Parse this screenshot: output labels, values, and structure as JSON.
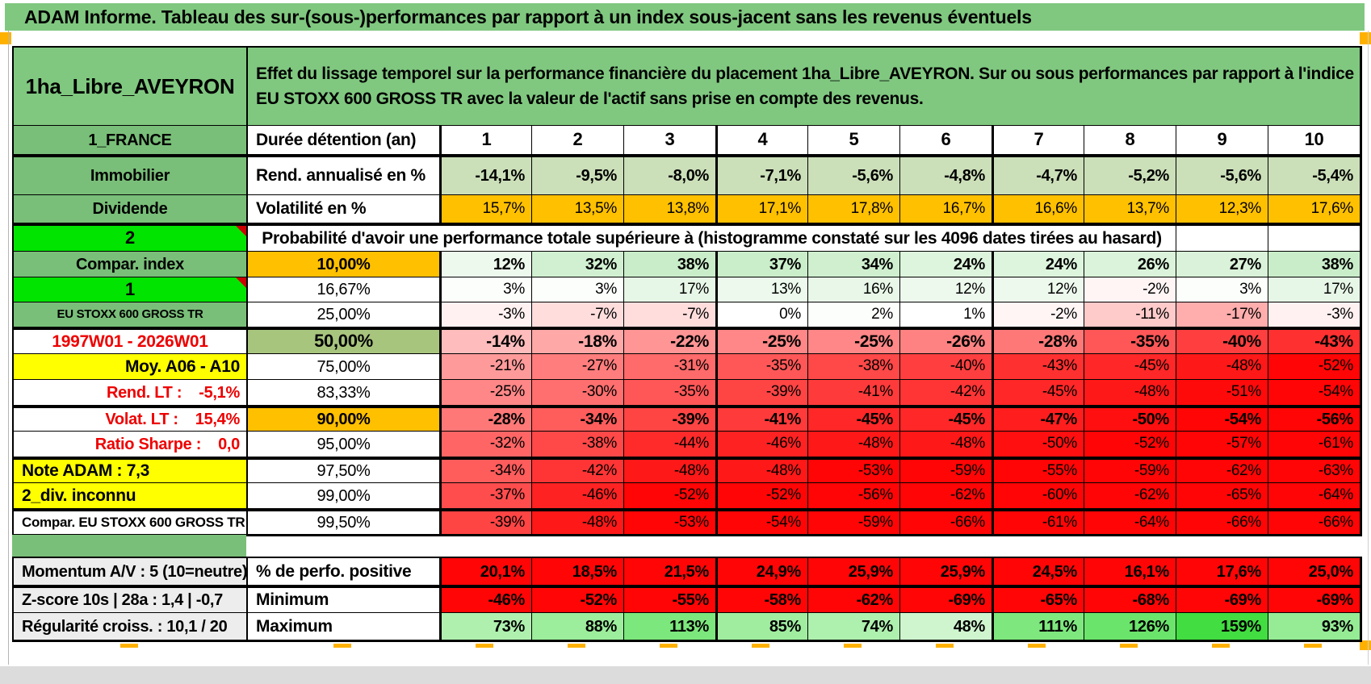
{
  "page_title": "ADAM Informe. Tableau des sur-(sous-)performances par rapport à un index sous-jacent sans les revenus éventuels",
  "colors": {
    "header_green": "#80C880",
    "label_green": "#79BF79",
    "bright_green": "#00E400",
    "orange": "#FFC000",
    "yellow": "#FFFF00",
    "olive": "#A8C57E",
    "rend_green": "#CBDFB9",
    "red_bg": "#FF0505",
    "gray_label": "#EDEDED"
  },
  "table": {
    "asset_name": "1ha_Libre_AVEYRON",
    "description": "Effet du lissage temporel sur la performance financière du placement 1ha_Libre_AVEYRON. Sur ou sous performances par rapport à l'indice EU STOXX 600 GROSS TR avec la valeur de l'actif sans prise en compte des revenus.",
    "duration": {
      "label": "1_FRANCE",
      "metric": "Durée détention (an)",
      "values": [
        "1",
        "2",
        "3",
        "4",
        "5",
        "6",
        "7",
        "8",
        "9",
        "10"
      ]
    },
    "rendement": {
      "label": "Immobilier",
      "metric": "Rend. annualisé en %",
      "values": [
        "-14,1%",
        "-9,5%",
        "-8,0%",
        "-7,1%",
        "-5,6%",
        "-4,8%",
        "-4,7%",
        "-5,2%",
        "-5,6%",
        "-5,4%"
      ]
    },
    "volatilite": {
      "label": "Dividende",
      "metric": "Volatilité en %",
      "values": [
        "15,7%",
        "13,5%",
        "13,8%",
        "17,1%",
        "17,8%",
        "16,7%",
        "16,6%",
        "13,7%",
        "12,3%",
        "17,6%"
      ]
    },
    "probabilite": {
      "marker": "2",
      "text": "Probabilité d'avoir une performance totale supérieure à (histogramme constaté sur les 4096 dates tirées au hasard)"
    },
    "quantiles": [
      {
        "label": "Compar. index",
        "threshold": "10,00%",
        "values": [
          "12%",
          "32%",
          "38%",
          "37%",
          "34%",
          "24%",
          "24%",
          "26%",
          "27%",
          "38%"
        ]
      },
      {
        "label": "1",
        "threshold": "16,67%",
        "values": [
          "3%",
          "3%",
          "17%",
          "13%",
          "16%",
          "12%",
          "12%",
          "-2%",
          "3%",
          "17%"
        ]
      },
      {
        "label": "EU STOXX 600 GROSS TR",
        "threshold": "25,00%",
        "values": [
          "-3%",
          "-7%",
          "-7%",
          "0%",
          "2%",
          "1%",
          "-2%",
          "-11%",
          "-17%",
          "-3%"
        ]
      },
      {
        "label": "1997W01 - 2026W01",
        "threshold": "50,00%",
        "values": [
          "-14%",
          "-18%",
          "-22%",
          "-25%",
          "-25%",
          "-26%",
          "-28%",
          "-35%",
          "-40%",
          "-43%"
        ]
      },
      {
        "label": "Moy. A06 - A10",
        "threshold": "75,00%",
        "values": [
          "-21%",
          "-27%",
          "-31%",
          "-35%",
          "-38%",
          "-40%",
          "-43%",
          "-45%",
          "-48%",
          "-52%"
        ]
      },
      {
        "label": "Rend. LT :    -5,1%",
        "threshold": "83,33%",
        "values": [
          "-25%",
          "-30%",
          "-35%",
          "-39%",
          "-41%",
          "-42%",
          "-45%",
          "-48%",
          "-51%",
          "-54%"
        ]
      },
      {
        "label": "Volat. LT :    15,4%",
        "threshold": "90,00%",
        "values": [
          "-28%",
          "-34%",
          "-39%",
          "-41%",
          "-45%",
          "-45%",
          "-47%",
          "-50%",
          "-54%",
          "-56%"
        ]
      },
      {
        "label": "Ratio Sharpe :    0,0",
        "threshold": "95,00%",
        "values": [
          "-32%",
          "-38%",
          "-44%",
          "-46%",
          "-48%",
          "-48%",
          "-50%",
          "-52%",
          "-57%",
          "-61%"
        ]
      },
      {
        "label": "Note ADAM : 7,3",
        "threshold": "97,50%",
        "values": [
          "-34%",
          "-42%",
          "-48%",
          "-48%",
          "-53%",
          "-59%",
          "-55%",
          "-59%",
          "-62%",
          "-63%"
        ]
      },
      {
        "label": "2_div. inconnu",
        "threshold": "99,00%",
        "values": [
          "-37%",
          "-46%",
          "-52%",
          "-52%",
          "-56%",
          "-62%",
          "-60%",
          "-62%",
          "-65%",
          "-64%"
        ]
      },
      {
        "label": "Compar. EU STOXX 600 GROSS TR",
        "threshold": "99,50%",
        "values": [
          "-39%",
          "-48%",
          "-53%",
          "-54%",
          "-59%",
          "-66%",
          "-61%",
          "-64%",
          "-66%",
          "-66%"
        ]
      }
    ],
    "stats": [
      {
        "label": "Momentum A/V : 5 (10=neutre)",
        "metric": "% de perfo. positive",
        "values": [
          "20,1%",
          "18,5%",
          "21,5%",
          "24,9%",
          "25,9%",
          "25,9%",
          "24,5%",
          "16,1%",
          "17,6%",
          "25,0%"
        ]
      },
      {
        "label": "Z-score 10s | 28a : 1,4 | -0,7",
        "metric": "Minimum",
        "values": [
          "-46%",
          "-52%",
          "-55%",
          "-58%",
          "-62%",
          "-69%",
          "-65%",
          "-68%",
          "-69%",
          "-69%"
        ]
      },
      {
        "label": "Régularité croiss. : 10,1 / 20",
        "metric": "Maximum",
        "values": [
          "73%",
          "88%",
          "113%",
          "85%",
          "74%",
          "48%",
          "111%",
          "126%",
          "159%",
          "93%"
        ]
      }
    ]
  }
}
